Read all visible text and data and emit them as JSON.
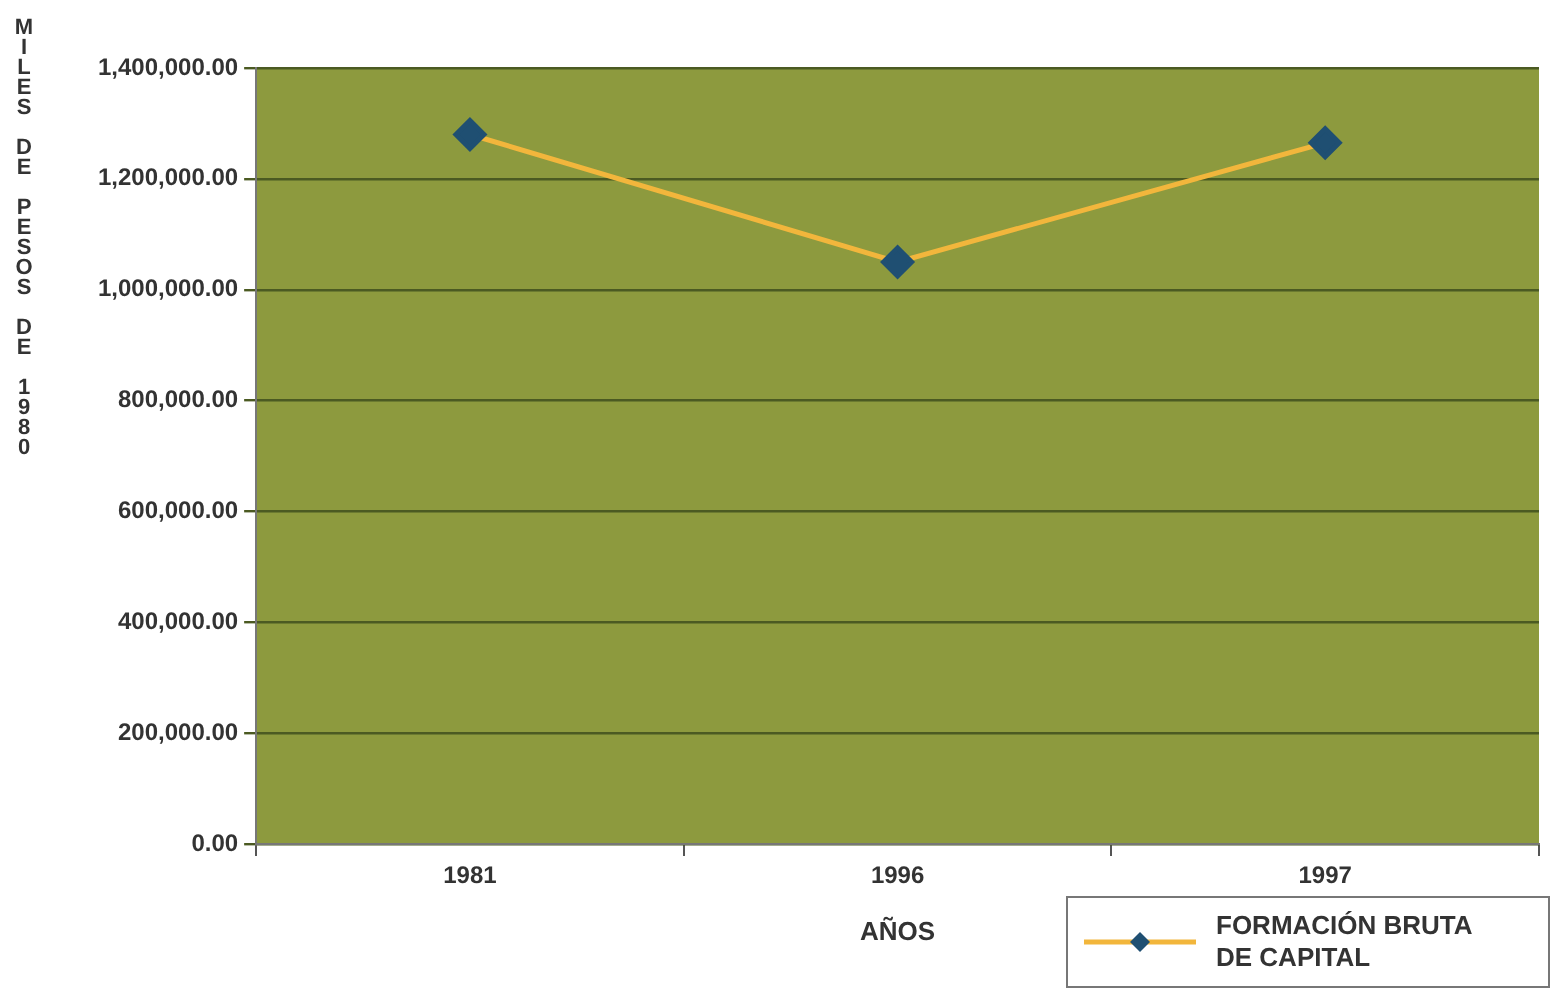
{
  "chart_data": {
    "type": "line",
    "xlabel": "AÑOS",
    "ylabel": "MILES DE PESOS DE 1980",
    "categories": [
      "1981",
      "1996",
      "1997"
    ],
    "series": [
      {
        "name": "FORMACIÓN BRUTA DE CAPITAL",
        "color": "#f2b63c",
        "values": [
          1280000,
          1050000,
          1265000
        ]
      }
    ],
    "ylim": [
      0,
      1400000
    ],
    "yticks": [
      {
        "value": 0,
        "label": "0.00"
      },
      {
        "value": 200000,
        "label": "200,000.00"
      },
      {
        "value": 400000,
        "label": "400,000.00"
      },
      {
        "value": 600000,
        "label": "600,000.00"
      },
      {
        "value": 800000,
        "label": "800,000.00"
      },
      {
        "value": 1000000,
        "label": "1,000,000.00"
      },
      {
        "value": 1200000,
        "label": "1,200,000.00"
      },
      {
        "value": 1400000,
        "label": "1,400,000.00"
      }
    ],
    "grid": "y",
    "legend": "bottom right",
    "marker": "diamond",
    "line_style": "solid"
  }
}
